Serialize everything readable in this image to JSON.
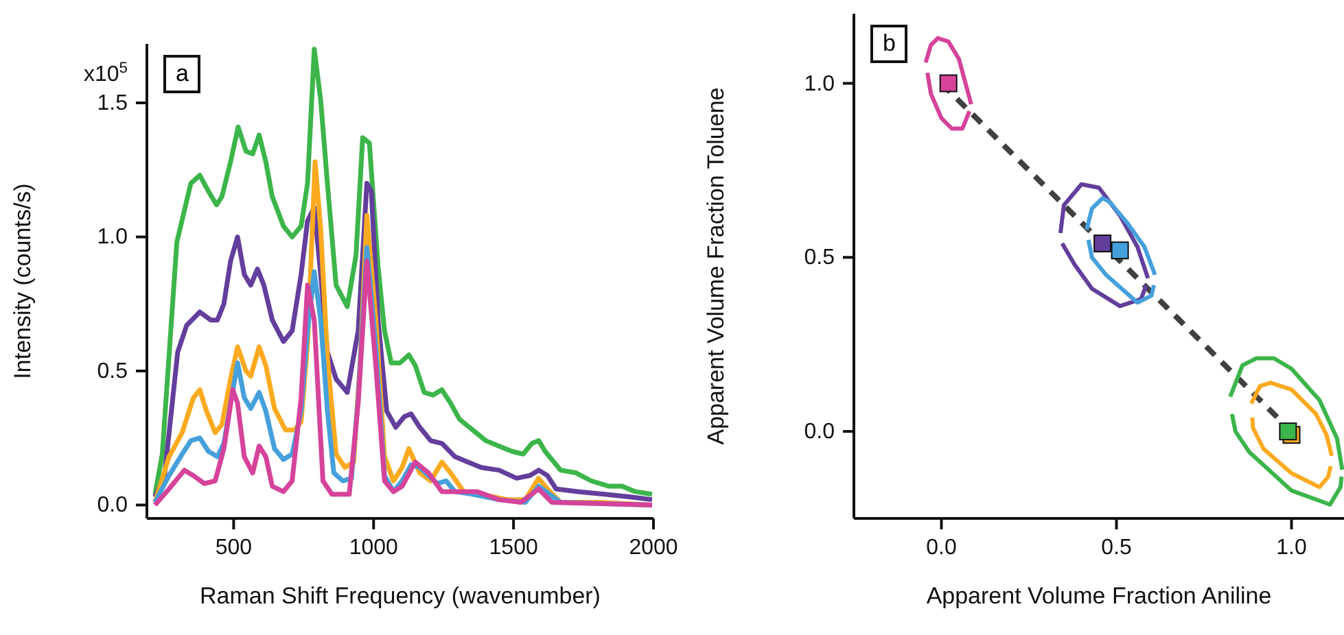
{
  "chart_data": [
    {
      "type": "line",
      "title": "a",
      "xlabel": "Raman Shift Frequency (wavenumber)",
      "ylabel": "Intensity (counts/s)",
      "xlim": [
        190,
        2000
      ],
      "ylim": [
        -0.05,
        1.72
      ],
      "xticks": [
        500,
        1000,
        1500,
        2000
      ],
      "yticks": [
        {
          "value": 0,
          "label": "0.0"
        },
        {
          "value": 0.5,
          "label": "0.5"
        },
        {
          "value": 1,
          "label": "1.0"
        },
        {
          "value": 1.5,
          "label": "1.5"
        }
      ],
      "annotations": [
        "x10$^{5}$"
      ],
      "series": [
        {
          "color": "#3cb54a",
          "x": [
            219,
            245,
            297,
            347,
            379,
            410,
            439,
            458,
            489,
            516,
            544,
            568,
            591,
            615,
            638,
            678,
            709,
            741,
            764,
            788,
            811,
            835,
            866,
            906,
            937,
            961,
            985,
            1016,
            1039,
            1063,
            1094,
            1126,
            1149,
            1181,
            1212,
            1244,
            1275,
            1307,
            1354,
            1401,
            1448,
            1495,
            1534,
            1566,
            1590,
            1613,
            1668,
            1723,
            1778,
            1841,
            1888,
            1935,
            1995
          ],
          "values": [
            0.04,
            0.19,
            0.98,
            1.2,
            1.23,
            1.17,
            1.12,
            1.15,
            1.28,
            1.41,
            1.32,
            1.31,
            1.38,
            1.28,
            1.15,
            1.04,
            1.0,
            1.04,
            1.2,
            1.7,
            1.51,
            1.2,
            0.82,
            0.74,
            0.93,
            1.37,
            1.35,
            0.89,
            0.65,
            0.53,
            0.53,
            0.56,
            0.52,
            0.42,
            0.41,
            0.43,
            0.38,
            0.32,
            0.28,
            0.24,
            0.22,
            0.2,
            0.19,
            0.23,
            0.24,
            0.2,
            0.13,
            0.12,
            0.09,
            0.07,
            0.07,
            0.05,
            0.04
          ]
        },
        {
          "color": "#633e9c",
          "x": [
            219,
            253,
            300,
            332,
            379,
            418,
            442,
            465,
            489,
            514,
            538,
            561,
            585,
            608,
            638,
            678,
            709,
            741,
            764,
            788,
            811,
            835,
            866,
            906,
            945,
            976,
            992,
            1016,
            1047,
            1079,
            1110,
            1134,
            1165,
            1204,
            1244,
            1291,
            1338,
            1385,
            1448,
            1511,
            1558,
            1590,
            1621,
            1652,
            1731,
            1825,
            1919,
            1995
          ],
          "values": [
            0.03,
            0.11,
            0.57,
            0.67,
            0.72,
            0.69,
            0.69,
            0.75,
            0.91,
            1.0,
            0.86,
            0.82,
            0.88,
            0.82,
            0.69,
            0.61,
            0.65,
            0.86,
            1.06,
            1.11,
            0.86,
            0.57,
            0.47,
            0.42,
            0.65,
            1.2,
            1.17,
            0.69,
            0.35,
            0.29,
            0.33,
            0.34,
            0.29,
            0.24,
            0.23,
            0.18,
            0.16,
            0.14,
            0.13,
            0.1,
            0.11,
            0.13,
            0.11,
            0.06,
            0.05,
            0.04,
            0.03,
            0.02
          ]
        },
        {
          "color": "#fbaa20",
          "x": [
            219,
            269,
            316,
            356,
            379,
            403,
            434,
            458,
            489,
            514,
            544,
            561,
            591,
            615,
            646,
            685,
            717,
            741,
            764,
            791,
            811,
            835,
            866,
            898,
            929,
            953,
            976,
            1008,
            1039,
            1071,
            1102,
            1126,
            1165,
            1204,
            1244,
            1275,
            1322,
            1385,
            1479,
            1542,
            1590,
            1621,
            1668,
            1810,
            1995
          ],
          "values": [
            0.01,
            0.18,
            0.27,
            0.4,
            0.43,
            0.35,
            0.27,
            0.3,
            0.47,
            0.59,
            0.5,
            0.48,
            0.59,
            0.52,
            0.36,
            0.28,
            0.28,
            0.31,
            0.6,
            1.28,
            1.03,
            0.55,
            0.19,
            0.14,
            0.16,
            0.55,
            1.08,
            0.69,
            0.18,
            0.09,
            0.14,
            0.21,
            0.12,
            0.09,
            0.16,
            0.12,
            0.05,
            0.04,
            0.02,
            0.02,
            0.1,
            0.06,
            0.01,
            0.01,
            0.0
          ]
        },
        {
          "color": "#45a0db",
          "x": [
            219,
            269,
            316,
            347,
            379,
            410,
            442,
            465,
            489,
            514,
            538,
            561,
            591,
            615,
            646,
            678,
            709,
            741,
            764,
            788,
            811,
            835,
            858,
            890,
            921,
            945,
            976,
            1008,
            1039,
            1071,
            1102,
            1134,
            1165,
            1196,
            1228,
            1259,
            1291,
            1354,
            1448,
            1542,
            1590,
            1629,
            1668,
            1995
          ],
          "values": [
            0.01,
            0.11,
            0.19,
            0.24,
            0.25,
            0.2,
            0.18,
            0.23,
            0.38,
            0.53,
            0.4,
            0.36,
            0.42,
            0.35,
            0.21,
            0.17,
            0.19,
            0.35,
            0.65,
            0.87,
            0.69,
            0.35,
            0.12,
            0.09,
            0.1,
            0.4,
            0.96,
            0.59,
            0.11,
            0.05,
            0.09,
            0.15,
            0.14,
            0.11,
            0.08,
            0.09,
            0.05,
            0.04,
            0.02,
            0.01,
            0.07,
            0.04,
            0.01,
            0.0
          ]
        },
        {
          "color": "#d5439a",
          "x": [
            219,
            269,
            324,
            356,
            395,
            434,
            465,
            497,
            514,
            538,
            568,
            591,
            615,
            638,
            678,
            709,
            741,
            764,
            788,
            819,
            851,
            913,
            945,
            976,
            1008,
            1039,
            1071,
            1102,
            1149,
            1196,
            1244,
            1291,
            1369,
            1448,
            1526,
            1590,
            1637,
            1995
          ],
          "values": [
            0.0,
            0.06,
            0.13,
            0.11,
            0.08,
            0.09,
            0.21,
            0.43,
            0.38,
            0.18,
            0.12,
            0.22,
            0.18,
            0.07,
            0.05,
            0.09,
            0.4,
            0.82,
            0.69,
            0.09,
            0.04,
            0.04,
            0.38,
            0.91,
            0.52,
            0.09,
            0.05,
            0.07,
            0.16,
            0.12,
            0.05,
            0.05,
            0.05,
            0.02,
            0.01,
            0.06,
            0.01,
            0.0
          ]
        }
      ]
    },
    {
      "type": "scatter",
      "title": "b",
      "xlabel": "Apparent Volume Fraction Aniline",
      "ylabel": "Apparent Volume Fraction Toluene",
      "xlim": [
        -0.25,
        1.15
      ],
      "ylim": [
        -0.25,
        1.2
      ],
      "xticks": [
        {
          "value": 0,
          "label": "0.0"
        },
        {
          "value": 0.5,
          "label": "0.5"
        },
        {
          "value": 1,
          "label": "1.0"
        }
      ],
      "yticks": [
        {
          "value": 0,
          "label": "0.0"
        },
        {
          "value": 0.5,
          "label": "0.5"
        },
        {
          "value": 1,
          "label": "1.0"
        }
      ],
      "series": [
        {
          "type": "line",
          "color": "#404040",
          "line_style": "dashed",
          "x": [
            0,
            1
          ],
          "values": [
            1,
            0
          ]
        },
        {
          "type": "line",
          "color": "#d5439a",
          "x": [
            -0.045,
            -0.03,
            -0.01,
            0.02,
            0.05,
            0.085
          ],
          "values": [
            1.06,
            1.11,
            1.13,
            1.12,
            1.07,
            0.94
          ]
        },
        {
          "type": "line",
          "color": "#d5439a",
          "x": [
            -0.04,
            -0.03,
            0.0,
            0.03,
            0.06,
            0.08
          ],
          "values": [
            1.03,
            0.97,
            0.9,
            0.87,
            0.87,
            0.92
          ]
        },
        {
          "type": "line",
          "color": "#633e9c",
          "x": [
            0.34,
            0.35,
            0.4,
            0.45,
            0.51,
            0.56,
            0.59
          ],
          "values": [
            0.57,
            0.65,
            0.71,
            0.7,
            0.62,
            0.53,
            0.44
          ]
        },
        {
          "type": "line",
          "color": "#633e9c",
          "x": [
            0.345,
            0.38,
            0.43,
            0.51,
            0.57,
            0.585
          ],
          "values": [
            0.54,
            0.48,
            0.41,
            0.36,
            0.38,
            0.42
          ]
        },
        {
          "type": "line",
          "color": "#45a0db",
          "x": [
            0.415,
            0.43,
            0.46,
            0.48,
            0.53,
            0.58,
            0.61
          ],
          "values": [
            0.58,
            0.64,
            0.67,
            0.66,
            0.6,
            0.53,
            0.45
          ]
        },
        {
          "type": "line",
          "color": "#45a0db",
          "x": [
            0.42,
            0.43,
            0.47,
            0.56,
            0.6,
            0.607
          ],
          "values": [
            0.55,
            0.5,
            0.45,
            0.37,
            0.39,
            0.42
          ]
        },
        {
          "type": "line",
          "color": "#3cb54a",
          "x": [
            0.825,
            0.86,
            0.9,
            0.95,
            1.0,
            1.08,
            1.13,
            1.145
          ],
          "values": [
            0.1,
            0.19,
            0.21,
            0.21,
            0.18,
            0.09,
            -0.02,
            -0.11
          ]
        },
        {
          "type": "line",
          "color": "#3cb54a",
          "x": [
            0.83,
            0.84,
            0.88,
            1.0,
            1.11,
            1.14,
            1.143
          ],
          "values": [
            0.05,
            0.0,
            -0.06,
            -0.17,
            -0.21,
            -0.16,
            -0.13
          ]
        },
        {
          "type": "line",
          "color": "#fbaa20",
          "x": [
            0.885,
            0.91,
            0.94,
            1.0,
            1.07,
            1.1,
            1.115
          ],
          "values": [
            0.08,
            0.13,
            0.14,
            0.12,
            0.05,
            -0.01,
            -0.07
          ]
        },
        {
          "type": "line",
          "color": "#fbaa20",
          "x": [
            0.888,
            0.89,
            0.92,
            1.0,
            1.08,
            1.105,
            1.112
          ],
          "values": [
            0.04,
            0.01,
            -0.05,
            -0.12,
            -0.16,
            -0.13,
            -0.1
          ]
        },
        {
          "marker": "square",
          "color": "#d5439a",
          "x": [
            0.02
          ],
          "values": [
            1.0
          ]
        },
        {
          "marker": "square",
          "color": "#633e9c",
          "x": [
            0.46
          ],
          "values": [
            0.54
          ]
        },
        {
          "marker": "square",
          "color": "#45a0db",
          "x": [
            0.51
          ],
          "values": [
            0.52
          ]
        },
        {
          "marker": "square",
          "color": "#fbaa20",
          "x": [
            1.0
          ],
          "values": [
            -0.01
          ]
        },
        {
          "marker": "square",
          "color": "#3cb54a",
          "x": [
            0.99
          ],
          "values": [
            0.0
          ]
        }
      ]
    }
  ]
}
